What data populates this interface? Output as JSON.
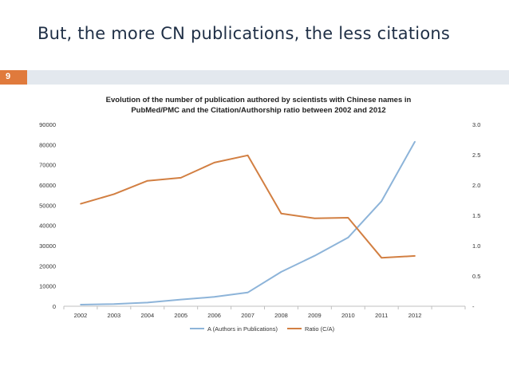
{
  "slide": {
    "title": "But, the more CN publications, the less citations",
    "page_number": "9"
  },
  "colors": {
    "series_a": "#8db4d9",
    "series_ratio": "#d27f42",
    "band": "#e3e8ee",
    "accent": "#e07a3c",
    "title": "#1f2f46"
  },
  "chart_data": {
    "type": "line",
    "title_lines": [
      "Evolution of the number of publication authored by scientists with Chinese names in",
      "PubMed/PMC  and the Citation/Authorship ratio between 2002 and 2012"
    ],
    "categories": [
      "2002",
      "2003",
      "2004",
      "2005",
      "2006",
      "2007",
      "2008",
      "2009",
      "2010",
      "2011",
      "2012"
    ],
    "series": [
      {
        "name": "A (Authors in Publications)",
        "axis": "left",
        "values": [
          800,
          1100,
          1800,
          3300,
          4600,
          6800,
          17000,
          25000,
          34000,
          52000,
          81500
        ]
      },
      {
        "name": "Ratio (C/A)",
        "axis": "right",
        "values": [
          1.69,
          1.85,
          2.07,
          2.12,
          2.37,
          2.49,
          1.53,
          1.45,
          1.46,
          0.8,
          0.83
        ]
      }
    ],
    "y_left": {
      "min": 0,
      "max": 90000,
      "tick_values": [
        0,
        10000,
        20000,
        30000,
        40000,
        50000,
        60000,
        70000,
        80000,
        90000
      ],
      "tick_labels": [
        "0",
        "10000",
        "20000",
        "30000",
        "40000",
        "50000",
        "60000",
        "70000",
        "80000",
        "90000"
      ]
    },
    "y_right": {
      "min": 0,
      "max": 3.0,
      "tick_values": [
        0,
        0.5,
        1.0,
        1.5,
        2.0,
        2.5,
        3.0
      ],
      "tick_labels": [
        "-",
        "0.5",
        "1.0",
        "1.5",
        "2.0",
        "2.5",
        "3.0"
      ]
    },
    "grid": false,
    "legend_position": "bottom-center"
  }
}
